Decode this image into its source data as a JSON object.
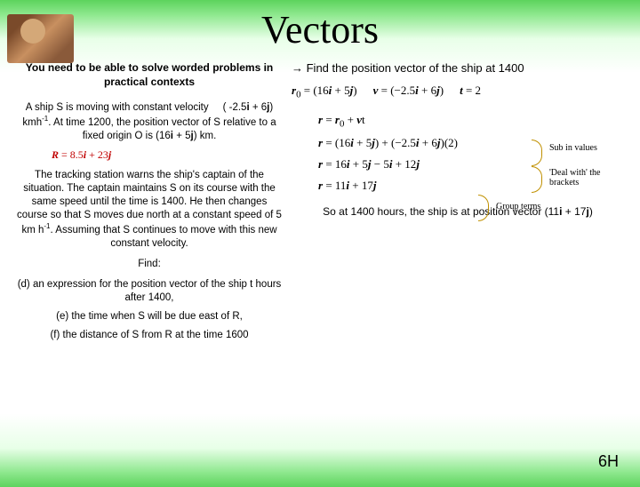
{
  "title": "Vectors",
  "left": {
    "intro": "You need to be able to solve worded problems in practical contexts",
    "para1_html": "A ship S is moving with constant velocity &nbsp;&nbsp;&nbsp;&nbsp;( -2.5<b>i</b> + 6<b>j</b>) kmh<sup>-1</sup>. At time 1200, the position vector of S relative to a fixed origin O is (16<b>i</b> + 5<b>j</b>) km.",
    "eq_red_html": "<b><i>R</i></b> = 8.5<b><i>i</i></b> + 23<b><i>j</i></b>",
    "para2_html": "The tracking station warns the ship's captain of the situation. The captain maintains S on its course with the same speed until the time is 1400. He then changes course so that S moves due north at a constant speed of 5 km h<sup>-1</sup>. Assuming that S continues to move with this new constant velocity.",
    "find": "Find:",
    "d": "(d) an expression for the position vector of the ship t hours after 1400,",
    "e": "(e) the time when S will be due east of R,",
    "f": "(f) the distance of S from R at the time 1600"
  },
  "right": {
    "prompt": "→ Find the position vector of the ship at 1400",
    "row3": {
      "r0_html": "<b><i>r</i></b><sub>0</sub> = (16<b><i>i</i></b> + 5<b><i>j</i></b>)",
      "v_html": "<b><i>v</i></b> = (−2.5<b><i>i</i></b> + 6<b><i>j</i></b>)",
      "t_html": "<b><i>t</i></b> = 2"
    },
    "lines": {
      "l1_html": "<b><i>r</i></b> = <b><i>r</i></b><sub>0</sub> + <b><i>v</i></b>t",
      "l2_html": "<b><i>r</i></b> = (16<b><i>i</i></b> + 5<b><i>j</i></b>) + (−2.5<b><i>i</i></b> + 6<b><i>j</i></b>)(2)",
      "l3_html": "<b><i>r</i></b> = 16<b><i>i</i></b> + 5<b><i>j</i></b> − 5<b><i>i</i></b> + 12<b><i>j</i></b>",
      "l4_html": "<b><i>r</i></b> = 11<b><i>i</i></b> + 17<b><i>j</i></b>"
    },
    "annots": {
      "a1": "Sub in values",
      "a2": "'Deal with' the brackets",
      "a3": "Group terms"
    },
    "conclusion_html": "So at 1400 hours, the ship is at position vector (11<b>i</b> + 17<b>j</b>)"
  },
  "footer": "6H",
  "colors": {
    "red": "#c00000",
    "arc": "#c09000"
  }
}
